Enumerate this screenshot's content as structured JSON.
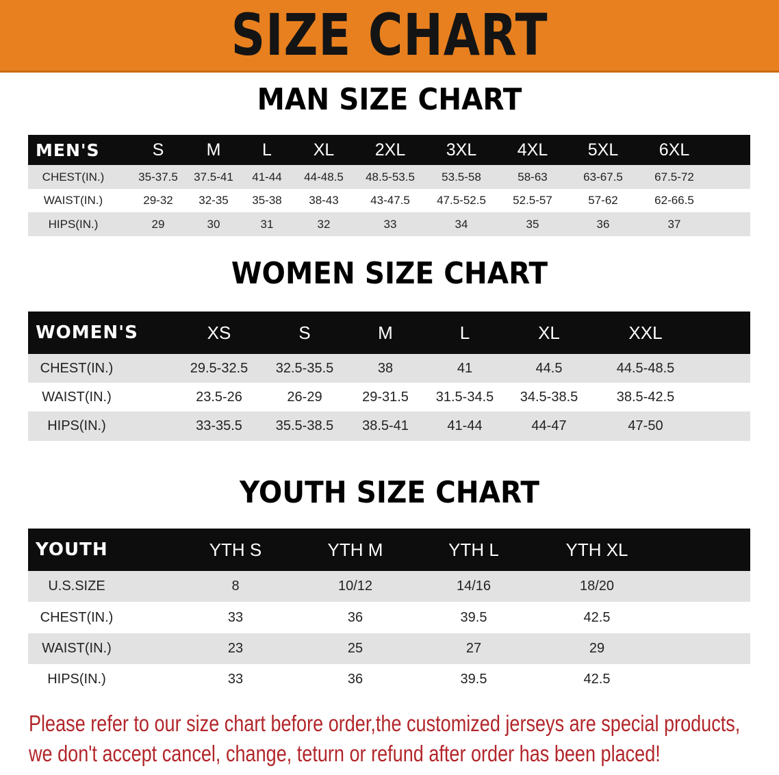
{
  "banner": {
    "title": "SIZE CHART",
    "color": "#e8801f"
  },
  "men": {
    "title": "MAN SIZE CHART",
    "header": [
      "MEN'S",
      "S",
      "M",
      "L",
      "XL",
      "2XL",
      "3XL",
      "4XL",
      "5XL",
      "6XL"
    ],
    "rows": [
      [
        "CHEST(IN.)",
        "35-37.5",
        "37.5-41",
        "41-44",
        "44-48.5",
        "48.5-53.5",
        "53.5-58",
        "58-63",
        "63-67.5",
        "67.5-72"
      ],
      [
        "WAIST(IN.)",
        "29-32",
        "32-35",
        "35-38",
        "38-43",
        "43-47.5",
        "47.5-52.5",
        "52.5-57",
        "57-62",
        "62-66.5"
      ],
      [
        "HIPS(IN.)",
        "29",
        "30",
        "31",
        "32",
        "33",
        "34",
        "35",
        "36",
        "37"
      ]
    ]
  },
  "women": {
    "title": "WOMEN SIZE CHART",
    "header": [
      "WOMEN'S",
      "XS",
      "S",
      "M",
      "L",
      "XL",
      "XXL"
    ],
    "rows": [
      [
        "CHEST(IN.)",
        "29.5-32.5",
        "32.5-35.5",
        "38",
        "41",
        "44.5",
        "44.5-48.5"
      ],
      [
        "WAIST(IN.)",
        "23.5-26",
        "26-29",
        "29-31.5",
        "31.5-34.5",
        "34.5-38.5",
        "38.5-42.5"
      ],
      [
        "HIPS(IN.)",
        "33-35.5",
        "35.5-38.5",
        "38.5-41",
        "41-44",
        "44-47",
        "47-50"
      ]
    ]
  },
  "youth": {
    "title": "YOUTH SIZE CHART",
    "header": [
      "YOUTH",
      "YTH S",
      "YTH M",
      "YTH L",
      "YTH XL"
    ],
    "rows": [
      [
        "U.S.SIZE",
        "8",
        "10/12",
        "14/16",
        "18/20"
      ],
      [
        "CHEST(IN.)",
        "33",
        "36",
        "39.5",
        "42.5"
      ],
      [
        "WAIST(IN.)",
        "23",
        "25",
        "27",
        "29"
      ],
      [
        "HIPS(IN.)",
        "33",
        "36",
        "39.5",
        "42.5"
      ]
    ]
  },
  "note": {
    "line1": "Please refer to our size chart before order,the customized jerseys are special products,",
    "line2": "we don't accept cancel, change, teturn or refund after order has been placed!",
    "color": "#b2262b"
  }
}
